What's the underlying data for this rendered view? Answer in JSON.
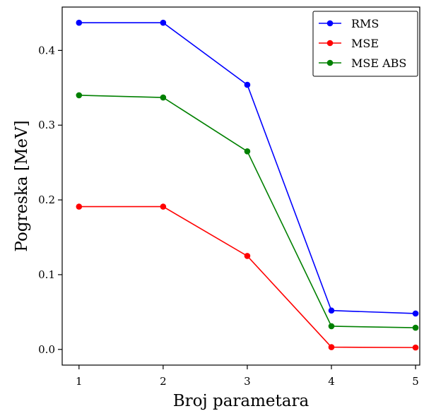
{
  "chart_data": {
    "type": "line",
    "x": [
      1,
      2,
      3,
      4,
      5
    ],
    "xticks": [
      "1",
      "2",
      "3",
      "4",
      "5"
    ],
    "yticks": [
      "0.0",
      "0.1",
      "0.2",
      "0.3",
      "0.4"
    ],
    "xlabel": "Broj parametara",
    "ylabel": "Pogreska [MeV]",
    "xlim": [
      0.8,
      5.05
    ],
    "ylim": [
      -0.021,
      0.458
    ],
    "grid": false,
    "legend_position": "top-right",
    "series": [
      {
        "name": "RMS",
        "color": "#0000ff",
        "values": [
          0.437,
          0.437,
          0.354,
          0.052,
          0.048
        ]
      },
      {
        "name": "MSE",
        "color": "#ff0000",
        "values": [
          0.191,
          0.191,
          0.125,
          0.003,
          0.0025
        ]
      },
      {
        "name": "MSE ABS",
        "color": "#008000",
        "values": [
          0.34,
          0.337,
          0.265,
          0.031,
          0.029
        ]
      }
    ]
  }
}
